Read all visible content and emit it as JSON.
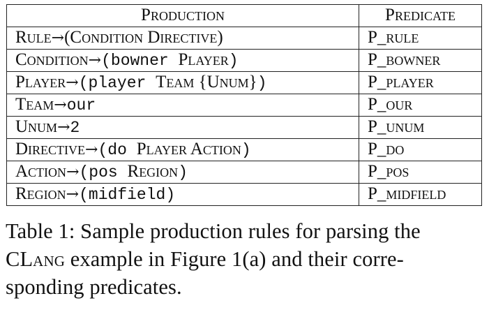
{
  "table": {
    "header": {
      "production": "Production",
      "predicate": "Predicate"
    },
    "rows": [
      {
        "lhs": "Rule",
        "arrow": "→",
        "rhs_parts": [
          {
            "text": "(Condition Directive)",
            "style": "sc"
          }
        ],
        "predicate": "P_rule"
      },
      {
        "lhs": "Condition",
        "arrow": "→",
        "rhs_parts": [
          {
            "text": "(bowner ",
            "style": "tt"
          },
          {
            "text": "Player",
            "style": "sc"
          },
          {
            "text": ")",
            "style": "tt"
          }
        ],
        "predicate": "P_bowner"
      },
      {
        "lhs": "Player",
        "arrow": "→",
        "rhs_parts": [
          {
            "text": "(player ",
            "style": "tt"
          },
          {
            "text": "Team {Unum}",
            "style": "sc"
          },
          {
            "text": ")",
            "style": "tt"
          }
        ],
        "predicate": "P_player"
      },
      {
        "lhs": "Team",
        "arrow": "→",
        "rhs_parts": [
          {
            "text": "our",
            "style": "tt"
          }
        ],
        "predicate": "P_our"
      },
      {
        "lhs": "Unum",
        "arrow": "→",
        "rhs_parts": [
          {
            "text": "2",
            "style": "tt"
          }
        ],
        "predicate": "P_unum"
      },
      {
        "lhs": "Directive",
        "arrow": "→",
        "rhs_parts": [
          {
            "text": "(do ",
            "style": "tt"
          },
          {
            "text": "Player Action",
            "style": "sc"
          },
          {
            "text": ")",
            "style": "tt"
          }
        ],
        "predicate": "P_do"
      },
      {
        "lhs": "Action",
        "arrow": "→",
        "rhs_parts": [
          {
            "text": "(pos ",
            "style": "tt"
          },
          {
            "text": "Region",
            "style": "sc"
          },
          {
            "text": ")",
            "style": "tt"
          }
        ],
        "predicate": "P_pos"
      },
      {
        "lhs": "Region",
        "arrow": "→",
        "rhs_parts": [
          {
            "text": "(midfield)",
            "style": "tt"
          }
        ],
        "predicate": "P_midfield"
      }
    ]
  },
  "caption": {
    "lines": [
      "Table 1: Sample production rules for parsing the",
      "CLang example in Figure 1(a) and their corre-",
      "sponding predicates."
    ]
  }
}
